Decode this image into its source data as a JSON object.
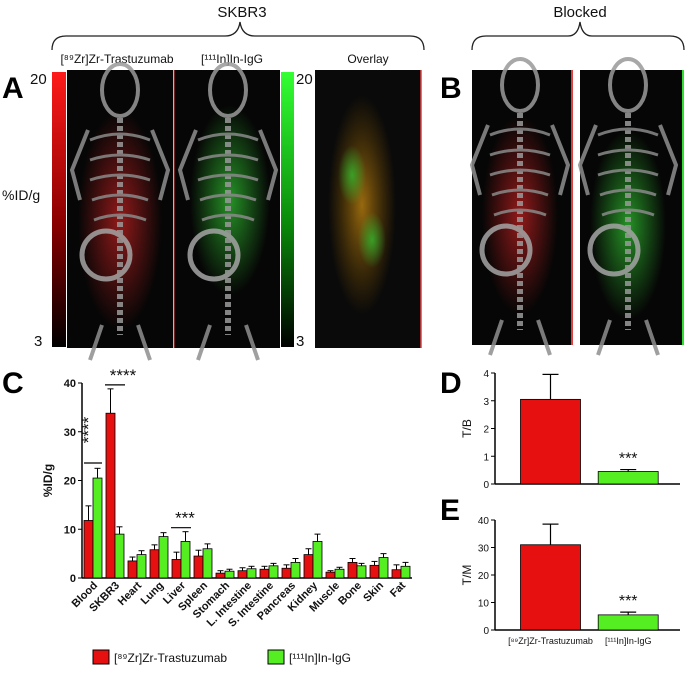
{
  "header": {
    "group_skbr3": "SKBR3",
    "group_blocked": "Blocked",
    "col_zr": "[⁸⁹Zr]Zr-Trastuzumab",
    "col_in": "[¹¹¹In]In-IgG",
    "col_overlay": "Overlay"
  },
  "panel_letters": {
    "a": "A",
    "b": "B",
    "c": "C",
    "d": "D",
    "e": "E"
  },
  "scale": {
    "label": "%ID/g",
    "red_max": "20",
    "red_min": "3",
    "green_max": "20",
    "green_min": "3"
  },
  "colors": {
    "zr": "#ff0000",
    "in": "#66ff33",
    "red_bar": "#e61010",
    "green_bar": "#55ee22"
  },
  "legend": {
    "zr": "[⁸⁹Zr]Zr-Trastuzumab",
    "in": "[¹¹¹In]In-IgG"
  },
  "chart_data": [
    {
      "panel": "C",
      "type": "bar",
      "ylabel": "%ID/g",
      "ylim": [
        0,
        40
      ],
      "yticks": [
        "0",
        "10",
        "20",
        "30",
        "40"
      ],
      "categories": [
        "Blood",
        "SKBR3",
        "Heart",
        "Lung",
        "Liver",
        "Spleen",
        "Stomach",
        "L. Intestine",
        "S. Intestine",
        "Pancreas",
        "Kidney",
        "Muscle",
        "Bone",
        "Skin",
        "Fat"
      ],
      "series": [
        {
          "name": "[⁸⁹Zr]Zr-Trastuzumab",
          "color": "#e61010",
          "values": [
            11.8,
            33.8,
            3.5,
            5.8,
            3.8,
            4.5,
            1.0,
            1.5,
            1.8,
            2.0,
            4.8,
            1.2,
            3.2,
            2.6,
            1.7
          ],
          "errors": [
            3.0,
            5.0,
            0.8,
            1.0,
            1.5,
            1.2,
            0.5,
            0.6,
            0.6,
            0.7,
            1.2,
            0.3,
            0.8,
            0.8,
            1.0
          ]
        },
        {
          "name": "[¹¹¹In]In-IgG",
          "color": "#55ee22",
          "values": [
            20.5,
            9.0,
            4.8,
            8.5,
            7.5,
            6.0,
            1.4,
            1.9,
            2.5,
            3.2,
            7.5,
            1.8,
            2.5,
            4.2,
            2.4
          ],
          "errors": [
            2.0,
            1.5,
            0.8,
            0.8,
            2.0,
            1.0,
            0.4,
            0.5,
            0.5,
            0.8,
            1.5,
            0.4,
            0.5,
            0.8,
            0.8
          ]
        }
      ],
      "significance": [
        {
          "between": "Blood",
          "text": "****",
          "orientation": "vertical"
        },
        {
          "between": "SKBR3",
          "text": "****",
          "orientation": "horizontal"
        },
        {
          "between": "Liver",
          "text": "***",
          "orientation": "horizontal"
        }
      ]
    },
    {
      "panel": "D",
      "type": "bar",
      "ylabel": "T/B",
      "ylim": [
        0,
        4
      ],
      "yticks": [
        "0",
        "1",
        "2",
        "3",
        "4"
      ],
      "categories": [
        "[⁸⁹Zr]Zr-Trastuzumab",
        "[¹¹¹In]In-IgG"
      ],
      "values": [
        3.05,
        0.45
      ],
      "errors": [
        0.9,
        0.07
      ],
      "significance": "***"
    },
    {
      "panel": "E",
      "type": "bar",
      "ylabel": "T/M",
      "ylim": [
        0,
        40
      ],
      "yticks": [
        "0",
        "10",
        "20",
        "30",
        "40"
      ],
      "categories": [
        "[⁸⁹Zr]Zr-Trastuzumab",
        "[¹¹¹In]In-IgG"
      ],
      "values": [
        31,
        5.5
      ],
      "errors": [
        7.5,
        1.0
      ],
      "significance": "***"
    }
  ]
}
